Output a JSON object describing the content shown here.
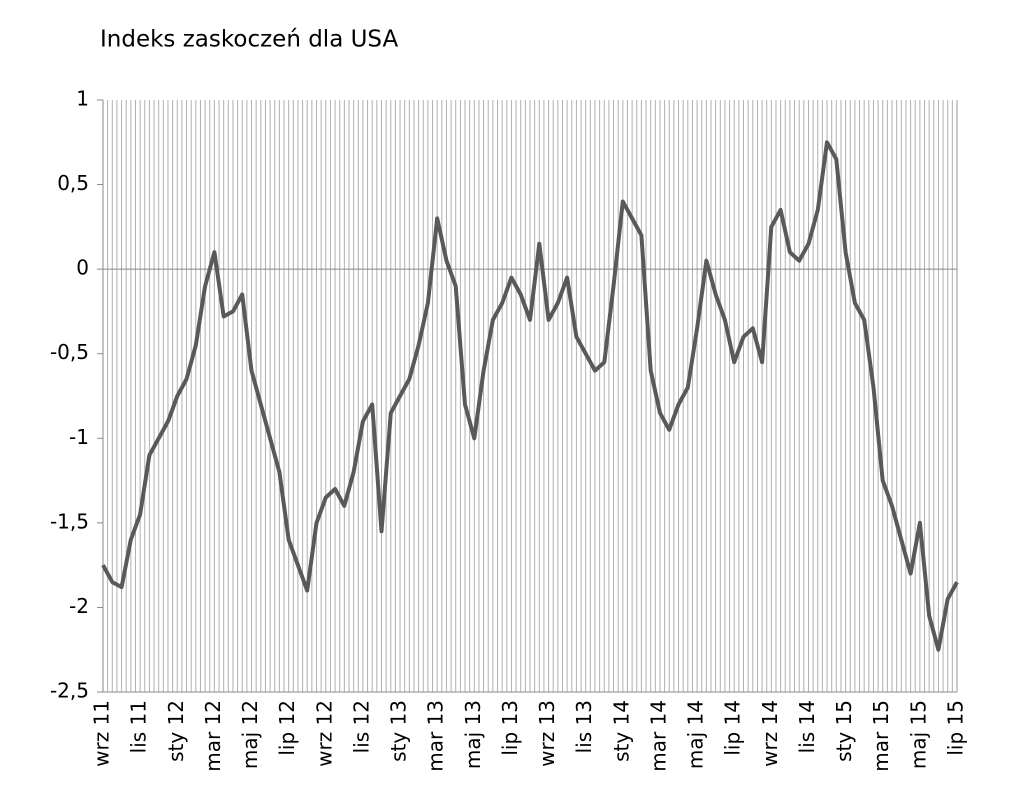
{
  "chart_data": {
    "type": "line",
    "title": "Indeks zaskoczeń dla USA",
    "categories": [
      "wrz 11",
      null,
      null,
      null,
      "lis 11",
      null,
      null,
      null,
      "sty 12",
      null,
      null,
      null,
      "mar 12",
      null,
      null,
      null,
      "maj 12",
      null,
      null,
      null,
      "lip 12",
      null,
      null,
      null,
      "wrz 12",
      null,
      null,
      null,
      "lis 12",
      null,
      null,
      null,
      "sty 13",
      null,
      null,
      null,
      "mar 13",
      null,
      null,
      null,
      "maj 13",
      null,
      null,
      null,
      "lip 13",
      null,
      null,
      null,
      "wrz 13",
      null,
      null,
      null,
      "lis 13",
      null,
      null,
      null,
      "sty 14",
      null,
      null,
      null,
      "mar 14",
      null,
      null,
      null,
      "maj 14",
      null,
      null,
      null,
      "lip 14",
      null,
      null,
      null,
      "wrz 14",
      null,
      null,
      null,
      "lis 14",
      null,
      null,
      null,
      "sty 15",
      null,
      null,
      null,
      "mar 15",
      null,
      null,
      null,
      "maj 15",
      null,
      null,
      null,
      "lip 15"
    ],
    "series": [
      {
        "color": "#595959",
        "values": [
          -1.75,
          -1.85,
          -1.88,
          -1.6,
          -1.45,
          -1.1,
          -1.0,
          -0.9,
          -0.75,
          -0.65,
          -0.45,
          -0.1,
          0.1,
          -0.28,
          -0.25,
          -0.15,
          -0.6,
          -0.8,
          -1.0,
          -1.2,
          -1.6,
          -1.75,
          -1.9,
          -1.5,
          -1.35,
          -1.3,
          -1.4,
          -1.2,
          -0.9,
          -0.8,
          -1.55,
          -0.85,
          -0.75,
          -0.65,
          -0.45,
          -0.2,
          0.3,
          0.05,
          -0.1,
          -0.8,
          -1.0,
          -0.6,
          -0.3,
          -0.2,
          -0.05,
          -0.15,
          -0.3,
          0.15,
          -0.3,
          -0.2,
          -0.05,
          -0.4,
          -0.5,
          -0.6,
          -0.55,
          -0.1,
          0.4,
          0.3,
          0.2,
          -0.6,
          -0.85,
          -0.95,
          -0.8,
          -0.7,
          -0.35,
          0.05,
          -0.15,
          -0.3,
          -0.55,
          -0.4,
          -0.35,
          -0.55,
          0.25,
          0.35,
          0.1,
          0.05,
          0.15,
          0.35,
          0.75,
          0.65,
          0.1,
          -0.2,
          -0.3,
          -0.7,
          -1.25,
          -1.4,
          -1.6,
          -1.8,
          -1.5,
          -2.05,
          -2.25,
          -1.95,
          -1.85
        ]
      }
    ],
    "ylim": [
      -2.5,
      1
    ],
    "yticks": [
      {
        "value": -2.5,
        "label": "-2,5"
      },
      -2,
      {
        "value": -1.5,
        "label": "-1,5"
      },
      -1,
      {
        "value": -0.5,
        "label": "-0,5"
      },
      0,
      {
        "value": 0.5,
        "label": "0,5"
      },
      1
    ]
  }
}
